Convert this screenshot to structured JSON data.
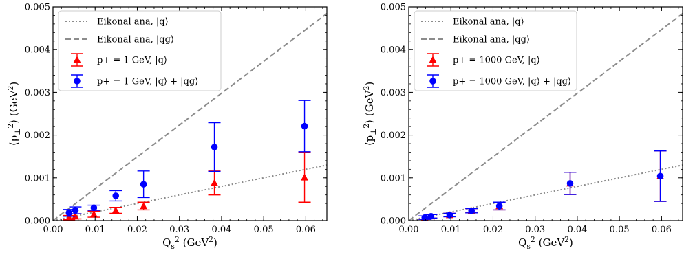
{
  "chart_data": [
    {
      "type": "scatter",
      "xlabel": "Q_s^2 (GeV^2)",
      "ylabel": "⟨p_⊥^2⟩ (GeV^2)",
      "xlim": [
        0,
        0.065
      ],
      "ylim": [
        0,
        0.005
      ],
      "xticks": [
        "0.00",
        "0.01",
        "0.02",
        "0.03",
        "0.04",
        "0.05",
        "0.06"
      ],
      "yticks": [
        "0.000",
        "0.001",
        "0.002",
        "0.003",
        "0.004",
        "0.005"
      ],
      "legend_position": "top-left",
      "grid": false,
      "lines": [
        {
          "name": "Eikonal ana, |q⟩",
          "style": "dotted",
          "color": "#8c8c8c",
          "slope": 0.02
        },
        {
          "name": "Eikonal ana, |qg⟩",
          "style": "dashed",
          "color": "#8c8c8c",
          "slope": 0.0745
        }
      ],
      "series": [
        {
          "name": "p+ = 1 GeV, |q⟩",
          "marker": "triangle",
          "color": "#ff0000",
          "x": [
            0.0038,
            0.0053,
            0.0097,
            0.0149,
            0.0215,
            0.0383,
            0.0597
          ],
          "y": [
            7e-05,
            0.0001,
            0.00015,
            0.00024,
            0.00034,
            0.00088,
            0.00101
          ],
          "err": [
            5e-05,
            6e-05,
            7e-05,
            7e-05,
            9e-05,
            0.00028,
            0.00058
          ]
        },
        {
          "name": "p+ = 1 GeV, |q⟩ + |qg⟩",
          "marker": "circle",
          "color": "#0000ff",
          "x": [
            0.0038,
            0.0053,
            0.0097,
            0.0149,
            0.0215,
            0.0383,
            0.0597
          ],
          "y": [
            0.00018,
            0.00024,
            0.0003,
            0.00058,
            0.00085,
            0.00172,
            0.00221
          ],
          "err": [
            8e-05,
            8e-05,
            6e-05,
            0.00012,
            0.00031,
            0.00057,
            0.0006
          ]
        }
      ]
    },
    {
      "type": "scatter",
      "xlabel": "Q_s^2 (GeV^2)",
      "ylabel": "⟨p_⊥^2⟩ (GeV^2)",
      "xlim": [
        0,
        0.065
      ],
      "ylim": [
        0,
        0.005
      ],
      "xticks": [
        "0.00",
        "0.01",
        "0.02",
        "0.03",
        "0.04",
        "0.05",
        "0.06"
      ],
      "yticks": [
        "0.000",
        "0.001",
        "0.002",
        "0.003",
        "0.004",
        "0.005"
      ],
      "legend_position": "top-left",
      "grid": false,
      "lines": [
        {
          "name": "Eikonal ana, |q⟩",
          "style": "dotted",
          "color": "#8c8c8c",
          "slope": 0.02
        },
        {
          "name": "Eikonal ana, |qg⟩",
          "style": "dashed",
          "color": "#8c8c8c",
          "slope": 0.0745
        }
      ],
      "series": [
        {
          "name": "p+ = 1000 GeV, |q⟩",
          "marker": "triangle",
          "color": "#ff0000",
          "x": [
            0.0038,
            0.0053,
            0.0097,
            0.0149,
            0.0215,
            0.0383,
            0.0597
          ],
          "y": [
            7e-05,
            0.0001,
            0.00013,
            0.00023,
            0.00034,
            0.00087,
            0.00104
          ],
          "err": [
            4e-05,
            4e-05,
            4e-05,
            5e-05,
            9e-05,
            0.00026,
            0.00059
          ]
        },
        {
          "name": "p+ = 1000 GeV, |q⟩ + |qg⟩",
          "marker": "circle",
          "color": "#0000ff",
          "x": [
            0.0038,
            0.0053,
            0.0097,
            0.0149,
            0.0215,
            0.0383,
            0.0597
          ],
          "y": [
            7e-05,
            0.0001,
            0.00013,
            0.00023,
            0.00034,
            0.00087,
            0.00104
          ],
          "err": [
            4e-05,
            4e-05,
            4e-05,
            5e-05,
            9e-05,
            0.00026,
            0.00059
          ]
        }
      ]
    }
  ]
}
